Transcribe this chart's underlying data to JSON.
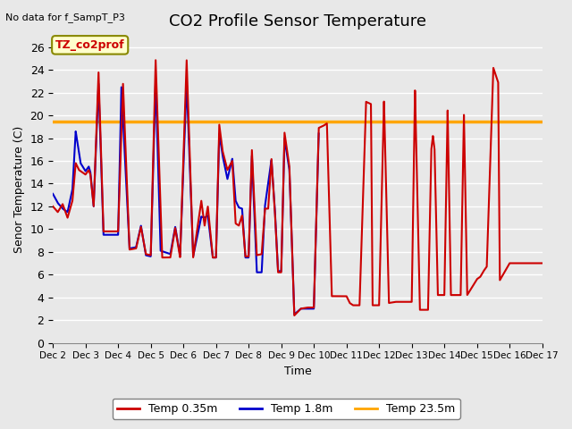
{
  "title": "CO2 Profile Sensor Temperature",
  "top_left_text": "No data for f_SampT_P3",
  "xlabel": "Time",
  "ylabel": "Senor Temperature (C)",
  "ylim": [
    0,
    27
  ],
  "yticks": [
    0,
    2,
    4,
    6,
    8,
    10,
    12,
    14,
    16,
    18,
    20,
    22,
    24,
    26
  ],
  "background_color": "#e8e8e8",
  "plot_bg_color": "#e8e8e8",
  "constant_temp_value": 19.5,
  "constant_color": "#ffa500",
  "red_color": "#cc0000",
  "blue_color": "#0000cc",
  "legend_labels": [
    "Temp 0.35m",
    "Temp 1.8m",
    "Temp 23.5m"
  ],
  "box_label": "TZ_co2prof",
  "x_tick_labels": [
    "Dec 2",
    "Dec 3",
    "Dec 4",
    "Dec 5",
    "Dec 6",
    "Dec 7",
    "Dec 8",
    "Dec 9",
    "Dec 10",
    "Dec 11",
    "Dec 12",
    "Dec 13",
    "Dec 14",
    "Dec 15",
    "Dec 16",
    "Dec 17"
  ],
  "title_fontsize": 13,
  "axis_fontsize": 9,
  "fig_width": 6.4,
  "fig_height": 4.8,
  "dpi": 100
}
